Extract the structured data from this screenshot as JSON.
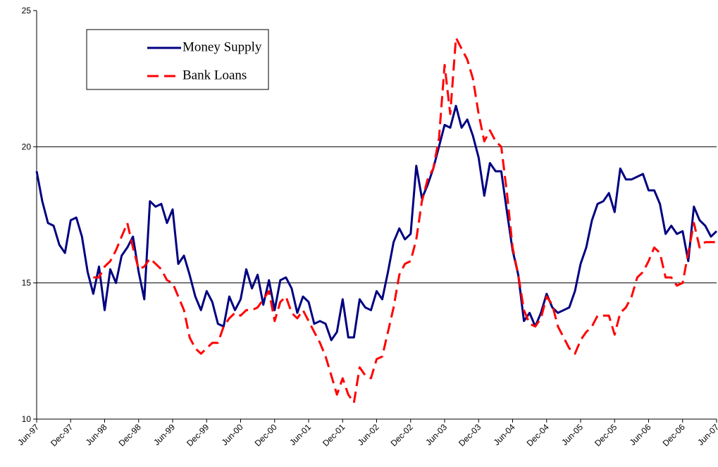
{
  "chart_data": {
    "type": "line",
    "categories": [
      "Jun-97",
      null,
      null,
      null,
      null,
      null,
      "Dec-97",
      null,
      null,
      null,
      null,
      null,
      "Jun-98",
      null,
      null,
      null,
      null,
      null,
      "Dec-98",
      null,
      null,
      null,
      null,
      null,
      "Jun-99",
      null,
      null,
      null,
      null,
      null,
      "Dec-99",
      null,
      null,
      null,
      null,
      null,
      "Jun-00",
      null,
      null,
      null,
      null,
      null,
      "Dec-00",
      null,
      null,
      null,
      null,
      null,
      "Jun-01",
      null,
      null,
      null,
      null,
      null,
      "Dec-01",
      null,
      null,
      null,
      null,
      null,
      "Jun-02",
      null,
      null,
      null,
      null,
      null,
      "Dec-02",
      null,
      null,
      null,
      null,
      null,
      "Jun-03",
      null,
      null,
      null,
      null,
      null,
      "Dec-03",
      null,
      null,
      null,
      null,
      null,
      "Jun-04",
      null,
      null,
      null,
      null,
      null,
      "Dec-04",
      null,
      null,
      null,
      null,
      null,
      "Jun-05",
      null,
      null,
      null,
      null,
      null,
      "Dec-05",
      null,
      null,
      null,
      null,
      null,
      "Jun-06",
      null,
      null,
      null,
      null,
      null,
      "Dec-06",
      null,
      null,
      null,
      null,
      null,
      "Jun-07"
    ],
    "series": [
      {
        "name": "Money Supply",
        "color": "#000080",
        "dash": false,
        "values": [
          19.1,
          18.0,
          17.2,
          17.1,
          16.4,
          16.1,
          17.3,
          17.4,
          16.7,
          15.4,
          14.6,
          15.6,
          14.0,
          15.5,
          15.0,
          16.0,
          16.3,
          16.7,
          15.4,
          14.4,
          18.0,
          17.8,
          17.9,
          17.2,
          17.7,
          15.7,
          16.0,
          15.3,
          14.5,
          14.0,
          14.7,
          14.3,
          13.5,
          13.4,
          14.5,
          14.0,
          14.4,
          15.5,
          14.8,
          15.3,
          14.2,
          15.1,
          14.0,
          15.1,
          15.2,
          14.8,
          13.9,
          14.5,
          14.3,
          13.5,
          13.6,
          13.5,
          12.9,
          13.2,
          14.4,
          13.0,
          13.0,
          14.4,
          14.1,
          14.0,
          14.7,
          14.4,
          15.4,
          16.5,
          17.0,
          16.6,
          16.8,
          19.3,
          18.1,
          18.6,
          19.2,
          20.0,
          20.8,
          20.7,
          21.5,
          20.7,
          21.0,
          20.4,
          19.6,
          18.2,
          19.4,
          19.1,
          19.1,
          17.6,
          16.2,
          15.3,
          13.6,
          13.9,
          13.4,
          13.9,
          14.6,
          14.1,
          13.9,
          14.0,
          14.1,
          14.7,
          15.7,
          16.3,
          17.3,
          17.9,
          18.0,
          18.3,
          17.6,
          19.2,
          18.8,
          18.8,
          18.9,
          19.0,
          18.4,
          18.4,
          17.9,
          16.8,
          17.1,
          16.8,
          16.9,
          15.8,
          17.8,
          17.3,
          17.1,
          16.7,
          16.9
        ]
      },
      {
        "name": "Bank Loans",
        "color": "#ff0000",
        "dash": true,
        "values": [
          null,
          null,
          null,
          null,
          null,
          null,
          null,
          null,
          null,
          null,
          15.2,
          15.2,
          15.6,
          15.8,
          16.2,
          16.7,
          17.2,
          16.3,
          15.5,
          15.6,
          15.9,
          15.7,
          15.5,
          15.1,
          15.0,
          14.5,
          14.0,
          13.0,
          12.6,
          12.4,
          12.6,
          12.8,
          12.8,
          13.4,
          13.7,
          13.9,
          13.8,
          14.0,
          14.0,
          14.1,
          14.4,
          14.7,
          13.6,
          14.3,
          14.5,
          13.9,
          13.7,
          14.0,
          13.6,
          13.2,
          12.8,
          12.3,
          11.6,
          10.9,
          11.5,
          10.9,
          10.6,
          11.9,
          11.6,
          11.5,
          12.2,
          12.3,
          13.2,
          14.1,
          15.3,
          15.7,
          15.8,
          16.6,
          18.0,
          18.8,
          19.2,
          20.3,
          23.0,
          21.2,
          24.0,
          23.6,
          23.2,
          22.5,
          21.2,
          20.2,
          20.6,
          20.2,
          20.0,
          18.3,
          16.3,
          15.3,
          14.0,
          13.5,
          13.4,
          13.7,
          14.5,
          14.2,
          13.4,
          13.0,
          12.6,
          12.4,
          12.9,
          13.2,
          13.4,
          13.8,
          13.8,
          13.8,
          13.1,
          13.9,
          14.1,
          14.5,
          15.2,
          15.4,
          15.8,
          16.3,
          16.1,
          15.2,
          15.2,
          14.9,
          15.0,
          16.1,
          17.2,
          16.3,
          16.5,
          16.5,
          16.5
        ]
      }
    ],
    "ylim": [
      10,
      25
    ],
    "yticks": [
      10,
      15,
      20,
      25
    ],
    "grid": true,
    "legend": "upper left"
  }
}
